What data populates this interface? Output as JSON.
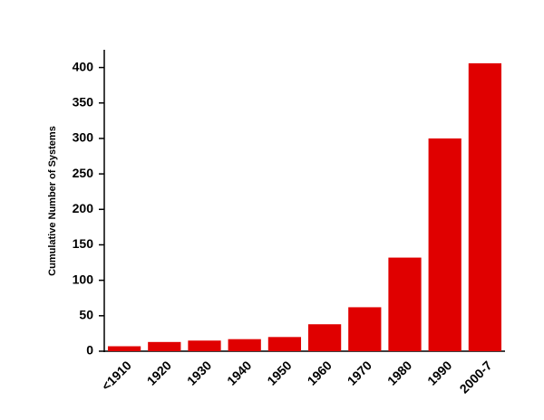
{
  "chart_data": {
    "type": "bar",
    "y_label": "Cumulative Number of Systems",
    "categories": [
      "<1910",
      "1920",
      "1930",
      "1940",
      "1950",
      "1960",
      "1970",
      "1980",
      "1990",
      "2000-7"
    ],
    "values": [
      7,
      13,
      15,
      17,
      20,
      38,
      62,
      132,
      300,
      406
    ],
    "color": "#e00000",
    "ylim": [
      0,
      425
    ],
    "yticks": [
      0,
      50,
      100,
      150,
      200,
      250,
      300,
      350,
      400
    ],
    "grid": false
  }
}
